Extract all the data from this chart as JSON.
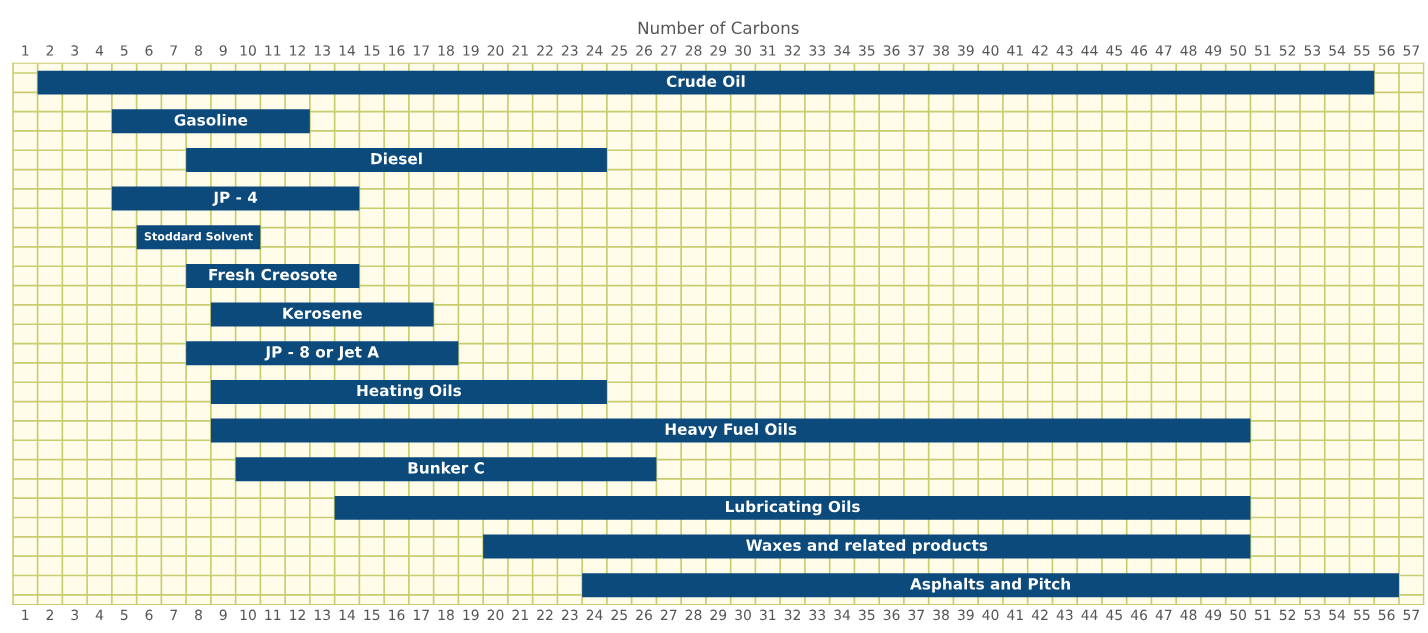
{
  "chart_data": {
    "type": "bar",
    "orientation": "horizontal",
    "xlabel": "Number of Carbons",
    "categories": [
      "Crude Oil",
      "Gasoline",
      "Diesel",
      "JP - 4",
      "Stoddard Solvent",
      "Fresh Creosote",
      "Kerosene",
      "JP - 8 or Jet A",
      "Heating Oils",
      "Heavy Fuel Oils",
      "Bunker C",
      "Lubricating Oils",
      "Waxes and related products",
      "Asphalts and Pitch"
    ],
    "base": [
      1.5,
      4.5,
      7.5,
      4.5,
      5.5,
      7.5,
      8.5,
      7.5,
      8.5,
      8.5,
      9.5,
      13.5,
      19.5,
      23.5
    ],
    "values": [
      54,
      8,
      17,
      10,
      5,
      7,
      9,
      11,
      16,
      42,
      17,
      37,
      31,
      33
    ],
    "color": "#0c4a7c",
    "xlim": [
      0.5,
      57.5
    ],
    "xticks": [
      1,
      2,
      3,
      4,
      5,
      6,
      7,
      8,
      9,
      10,
      11,
      12,
      13,
      14,
      15,
      16,
      17,
      18,
      19,
      20,
      21,
      22,
      23,
      24,
      25,
      26,
      27,
      28,
      29,
      30,
      31,
      32,
      33,
      34,
      35,
      36,
      37,
      38,
      39,
      40,
      41,
      42,
      43,
      44,
      45,
      46,
      47,
      48,
      49,
      50,
      51,
      52,
      53,
      54,
      55,
      56,
      57
    ],
    "x2lim": [
      0.5,
      57.5
    ],
    "x2ticks": [
      1,
      2,
      3,
      4,
      5,
      6,
      7,
      8,
      9,
      10,
      11,
      12,
      13,
      14,
      15,
      16,
      17,
      18,
      19,
      20,
      21,
      22,
      23,
      24,
      25,
      26,
      27,
      28,
      29,
      30,
      31,
      32,
      33,
      34,
      35,
      36,
      37,
      38,
      39,
      40,
      41,
      42,
      43,
      44,
      45,
      46,
      47,
      48,
      49,
      50,
      51,
      52,
      53,
      54,
      55,
      56,
      57
    ],
    "tick_labels": "x",
    "grid": true,
    "legend": false
  }
}
